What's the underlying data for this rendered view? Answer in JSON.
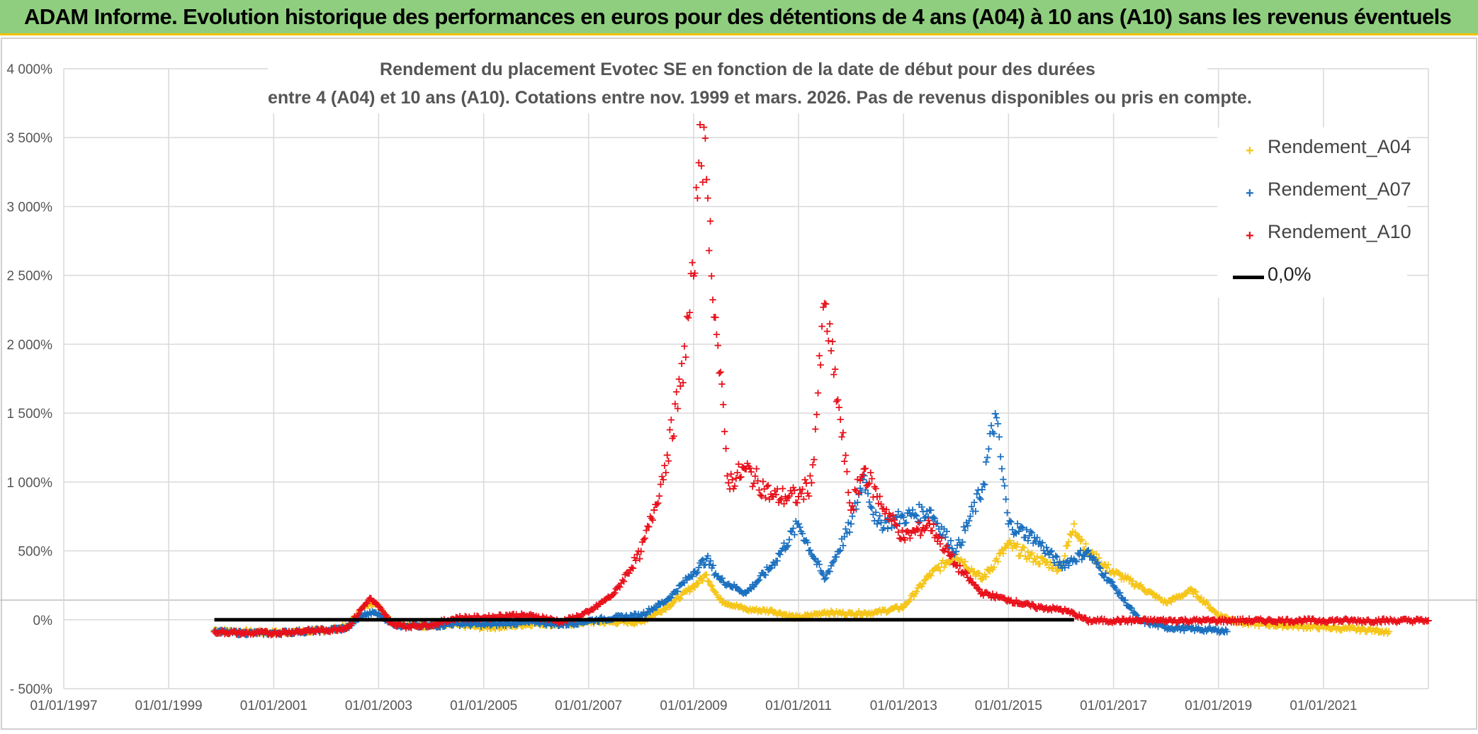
{
  "header": {
    "banner_text": "ADAM Informe. Evolution historique des performances en euros pour des détentions de 4 ans (A04) à 10 ans (A10) sans les revenus éventuels"
  },
  "chart_data": {
    "type": "scatter",
    "title_lines": [
      "Rendement du placement Evotec SE en fonction de la date de début pour des durées",
      "entre 4 (A04) et 10 ans (A10). Cotations entre nov. 1999 et mars. 2026. Pas de revenus disponibles ou pris en compte."
    ],
    "xlabel": "",
    "ylabel": "",
    "x_ticks": [
      "01/01/1997",
      "01/01/1999",
      "01/01/2001",
      "01/01/2003",
      "01/01/2005",
      "01/01/2007",
      "01/01/2009",
      "01/01/2011",
      "01/01/2013",
      "01/01/2015",
      "01/01/2017",
      "01/01/2019",
      "01/01/2021"
    ],
    "y_ticks": [
      "- 500%",
      "0%",
      "500%",
      "1 000%",
      "1 500%",
      "2 000%",
      "2 500%",
      "3 000%",
      "3 500%",
      "4 000%"
    ],
    "y_tick_values": [
      -500,
      0,
      500,
      1000,
      1500,
      2000,
      2500,
      3000,
      3500,
      4000
    ],
    "ylim": [
      -500,
      4000
    ],
    "xlim": [
      "1997-01-01",
      "2023-01-01"
    ],
    "grid": true,
    "legend_position": "top-right",
    "colors": {
      "A04": "#f5c518",
      "A07": "#1a6fbf",
      "A10": "#e8101a",
      "zero": "#000000"
    },
    "series": [
      {
        "name": "Rendement_A04",
        "key": "A04",
        "x": [
          "1999-11-15",
          "2000-06-01",
          "2001-01-01",
          "2001-06-01",
          "2002-01-01",
          "2002-06-01",
          "2002-09-01",
          "2002-11-01",
          "2003-01-01",
          "2003-04-01",
          "2003-07-01",
          "2004-01-01",
          "2004-07-01",
          "2005-01-01",
          "2005-07-01",
          "2006-01-01",
          "2006-07-01",
          "2007-01-01",
          "2007-07-01",
          "2008-01-01",
          "2008-07-01",
          "2009-01-01",
          "2009-04-01",
          "2009-07-01",
          "2010-01-01",
          "2010-07-01",
          "2011-01-01",
          "2011-07-01",
          "2012-01-01",
          "2012-07-01",
          "2013-01-01",
          "2013-07-01",
          "2014-01-01",
          "2014-07-01",
          "2015-01-01",
          "2015-07-01",
          "2016-01-01",
          "2016-04-01",
          "2016-07-01",
          "2017-01-01",
          "2017-07-01",
          "2018-01-01",
          "2018-07-01",
          "2019-01-01",
          "2019-07-01",
          "2020-01-01",
          "2020-07-01",
          "2021-01-01",
          "2021-07-01",
          "2022-01-01",
          "2022-04-01"
        ],
        "values": [
          -70,
          -80,
          -85,
          -80,
          -70,
          -40,
          80,
          130,
          110,
          -10,
          -30,
          -40,
          -30,
          -50,
          -40,
          -20,
          -30,
          -10,
          -10,
          -10,
          100,
          250,
          330,
          150,
          80,
          70,
          20,
          60,
          50,
          60,
          100,
          330,
          480,
          300,
          550,
          450,
          380,
          700,
          500,
          350,
          250,
          130,
          220,
          40,
          -20,
          -30,
          -40,
          -50,
          -60,
          -70,
          -80
        ]
      },
      {
        "name": "Rendement_A07",
        "key": "A07",
        "x": [
          "1999-11-15",
          "2000-06-01",
          "2001-01-01",
          "2001-06-01",
          "2002-01-01",
          "2002-06-01",
          "2002-09-01",
          "2002-11-01",
          "2003-01-01",
          "2003-04-01",
          "2003-07-01",
          "2004-01-01",
          "2004-07-01",
          "2005-01-01",
          "2005-07-01",
          "2006-01-01",
          "2006-07-01",
          "2007-01-01",
          "2007-07-01",
          "2008-01-01",
          "2008-07-01",
          "2009-01-01",
          "2009-04-01",
          "2009-07-01",
          "2010-01-01",
          "2010-07-01",
          "2011-01-01",
          "2011-07-01",
          "2012-01-01",
          "2012-04-01",
          "2012-07-01",
          "2013-01-01",
          "2013-07-01",
          "2014-01-01",
          "2014-07-01",
          "2014-10-01",
          "2015-01-01",
          "2015-07-01",
          "2016-01-01",
          "2016-07-01",
          "2017-01-01",
          "2017-07-01",
          "2018-01-01",
          "2018-07-01",
          "2019-01-01",
          "2019-03-01"
        ],
        "values": [
          -80,
          -90,
          -90,
          -80,
          -70,
          -50,
          30,
          60,
          50,
          -20,
          -40,
          -40,
          -20,
          -30,
          -20,
          -10,
          -30,
          0,
          20,
          40,
          150,
          350,
          450,
          300,
          200,
          400,
          700,
          300,
          700,
          1050,
          700,
          750,
          800,
          500,
          950,
          1500,
          700,
          600,
          400,
          500,
          250,
          0,
          -50,
          -60,
          -70,
          -80
        ]
      },
      {
        "name": "Rendement_A10",
        "key": "A10",
        "x": [
          "1999-11-15",
          "2000-06-01",
          "2001-01-01",
          "2001-06-01",
          "2002-01-01",
          "2002-06-01",
          "2002-09-01",
          "2002-11-01",
          "2003-01-01",
          "2003-04-01",
          "2003-07-01",
          "2004-01-01",
          "2004-07-01",
          "2005-01-01",
          "2005-07-01",
          "2006-01-01",
          "2006-07-01",
          "2007-01-01",
          "2007-07-01",
          "2008-01-01",
          "2008-04-01",
          "2008-07-01",
          "2008-10-01",
          "2009-01-01",
          "2009-02-15",
          "2009-04-01",
          "2009-06-01",
          "2009-09-01",
          "2010-01-01",
          "2010-07-01",
          "2011-01-01",
          "2011-04-01",
          "2011-07-01",
          "2011-10-01",
          "2012-01-01",
          "2012-04-01",
          "2012-07-01",
          "2013-01-01",
          "2013-07-01",
          "2014-01-01",
          "2014-07-01",
          "2015-01-01",
          "2015-07-01",
          "2016-01-01",
          "2016-04-01",
          "2016-07-01",
          "2017-01-01",
          "2018-01-01",
          "2019-01-01",
          "2020-01-01",
          "2021-01-01",
          "2022-01-01",
          "2022-12-31"
        ],
        "values": [
          -80,
          -90,
          -90,
          -80,
          -70,
          -50,
          80,
          160,
          100,
          -20,
          -40,
          -30,
          20,
          20,
          40,
          30,
          -10,
          60,
          200,
          500,
          800,
          1200,
          1700,
          2500,
          3600,
          3200,
          2200,
          1000,
          1100,
          900,
          900,
          1000,
          2300,
          1600,
          800,
          1100,
          900,
          600,
          700,
          400,
          200,
          150,
          100,
          80,
          50,
          0,
          0,
          0,
          0,
          0,
          0,
          0,
          0
        ]
      }
    ],
    "reference_line": {
      "name": "0,0%",
      "value": 0,
      "x_start": "1999-11-15",
      "x_end": "2016-04-01"
    }
  }
}
